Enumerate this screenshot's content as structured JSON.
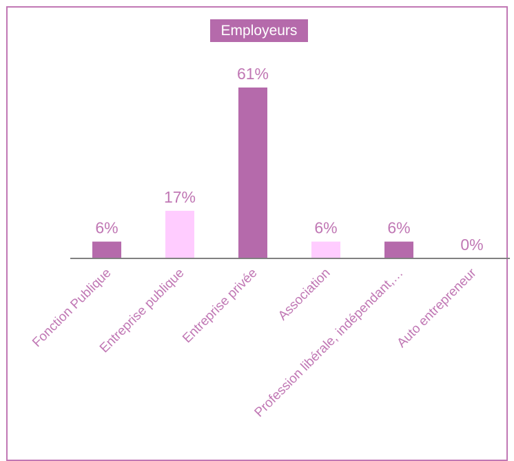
{
  "chart_data": {
    "type": "bar",
    "title": "Employeurs",
    "categories": [
      "Fonction Publique",
      "Entreprise publique",
      "Entreprise privée",
      "Association",
      "Profession libérale, indépendant,…",
      "Auto entrepreneur"
    ],
    "values": [
      6,
      17,
      61,
      6,
      6,
      0
    ],
    "value_labels": [
      "6%",
      "17%",
      "61%",
      "6%",
      "6%",
      "0%"
    ],
    "ylim": [
      0,
      70
    ],
    "grid": false,
    "legend": "none",
    "colors": [
      "#b56aab",
      "#ffccff",
      "#b56aab",
      "#ffccff",
      "#b56aab",
      "#ffccff"
    ]
  },
  "colors": {
    "frame": "#c077b4",
    "text": "#c077b4",
    "title_bg": "#b56aab",
    "title_text": "#ffffff",
    "axis": "#808080"
  }
}
